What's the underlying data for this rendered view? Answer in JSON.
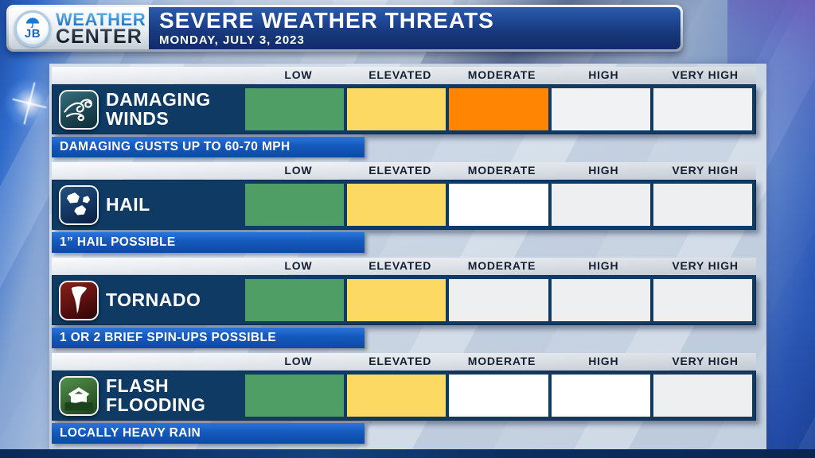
{
  "header": {
    "logo_initials": "JB",
    "brand_line1": "WEATHER",
    "brand_line2": "CENTER",
    "title": "SEVERE WEATHER THREATS",
    "date": "MONDAY, JULY 3, 2023"
  },
  "levels": [
    "LOW",
    "ELEVATED",
    "MODERATE",
    "HIGH",
    "VERY HIGH"
  ],
  "colors": {
    "low_active": "#4e9e66",
    "elevated_active": "#fbd963",
    "moderate_active": "#ff8503",
    "inactive": "#eeeff1",
    "row_navy": "#0e3a63",
    "caption_blue": "#1459bc"
  },
  "threats": [
    {
      "id": "damaging-winds",
      "name_line1": "DAMAGING",
      "name_line2": "WINDS",
      "icon": "wind-icon",
      "caption": "DAMAGING GUSTS UP TO 60-70 MPH",
      "cells": [
        "#4e9e66",
        "#fbd963",
        "#ff8503",
        "#f1f2f4",
        "#f1f2f4"
      ]
    },
    {
      "id": "hail",
      "name_line1": "HAIL",
      "name_line2": "",
      "icon": "hail-icon",
      "caption": "1” HAIL POSSIBLE",
      "cells": [
        "#4e9e66",
        "#fbd963",
        "#ffffff",
        "#eeeff1",
        "#eeeff1"
      ]
    },
    {
      "id": "tornado",
      "name_line1": "TORNADO",
      "name_line2": "",
      "icon": "tornado-icon",
      "caption": "1 OR 2 BRIEF SPIN-UPS POSSIBLE",
      "cells": [
        "#4e9e66",
        "#fbd963",
        "#eeeff1",
        "#eeeff1",
        "#eeeff1"
      ]
    },
    {
      "id": "flash-flooding",
      "name_line1": "FLASH",
      "name_line2": "FLOODING",
      "icon": "flood-icon",
      "caption": "LOCALLY HEAVY RAIN",
      "cells": [
        "#4e9e66",
        "#fbd963",
        "#ffffff",
        "#ffffff",
        "#eeeff1"
      ]
    }
  ],
  "chart_data": {
    "type": "table",
    "title": "SEVERE WEATHER THREATS",
    "subtitle": "MONDAY, JULY 3, 2023",
    "columns": [
      "LOW",
      "ELEVATED",
      "MODERATE",
      "HIGH",
      "VERY HIGH"
    ],
    "rows": [
      {
        "category": "DAMAGING WINDS",
        "threat_level": "MODERATE",
        "note": "DAMAGING GUSTS UP TO 60-70 MPH"
      },
      {
        "category": "HAIL",
        "threat_level": "ELEVATED",
        "note": "1” HAIL POSSIBLE"
      },
      {
        "category": "TORNADO",
        "threat_level": "ELEVATED",
        "note": "1 OR 2 BRIEF SPIN-UPS POSSIBLE"
      },
      {
        "category": "FLASH FLOODING",
        "threat_level": "ELEVATED",
        "note": "LOCALLY HEAVY RAIN"
      }
    ],
    "legend_position": "top-of-each-row",
    "grid": false
  }
}
